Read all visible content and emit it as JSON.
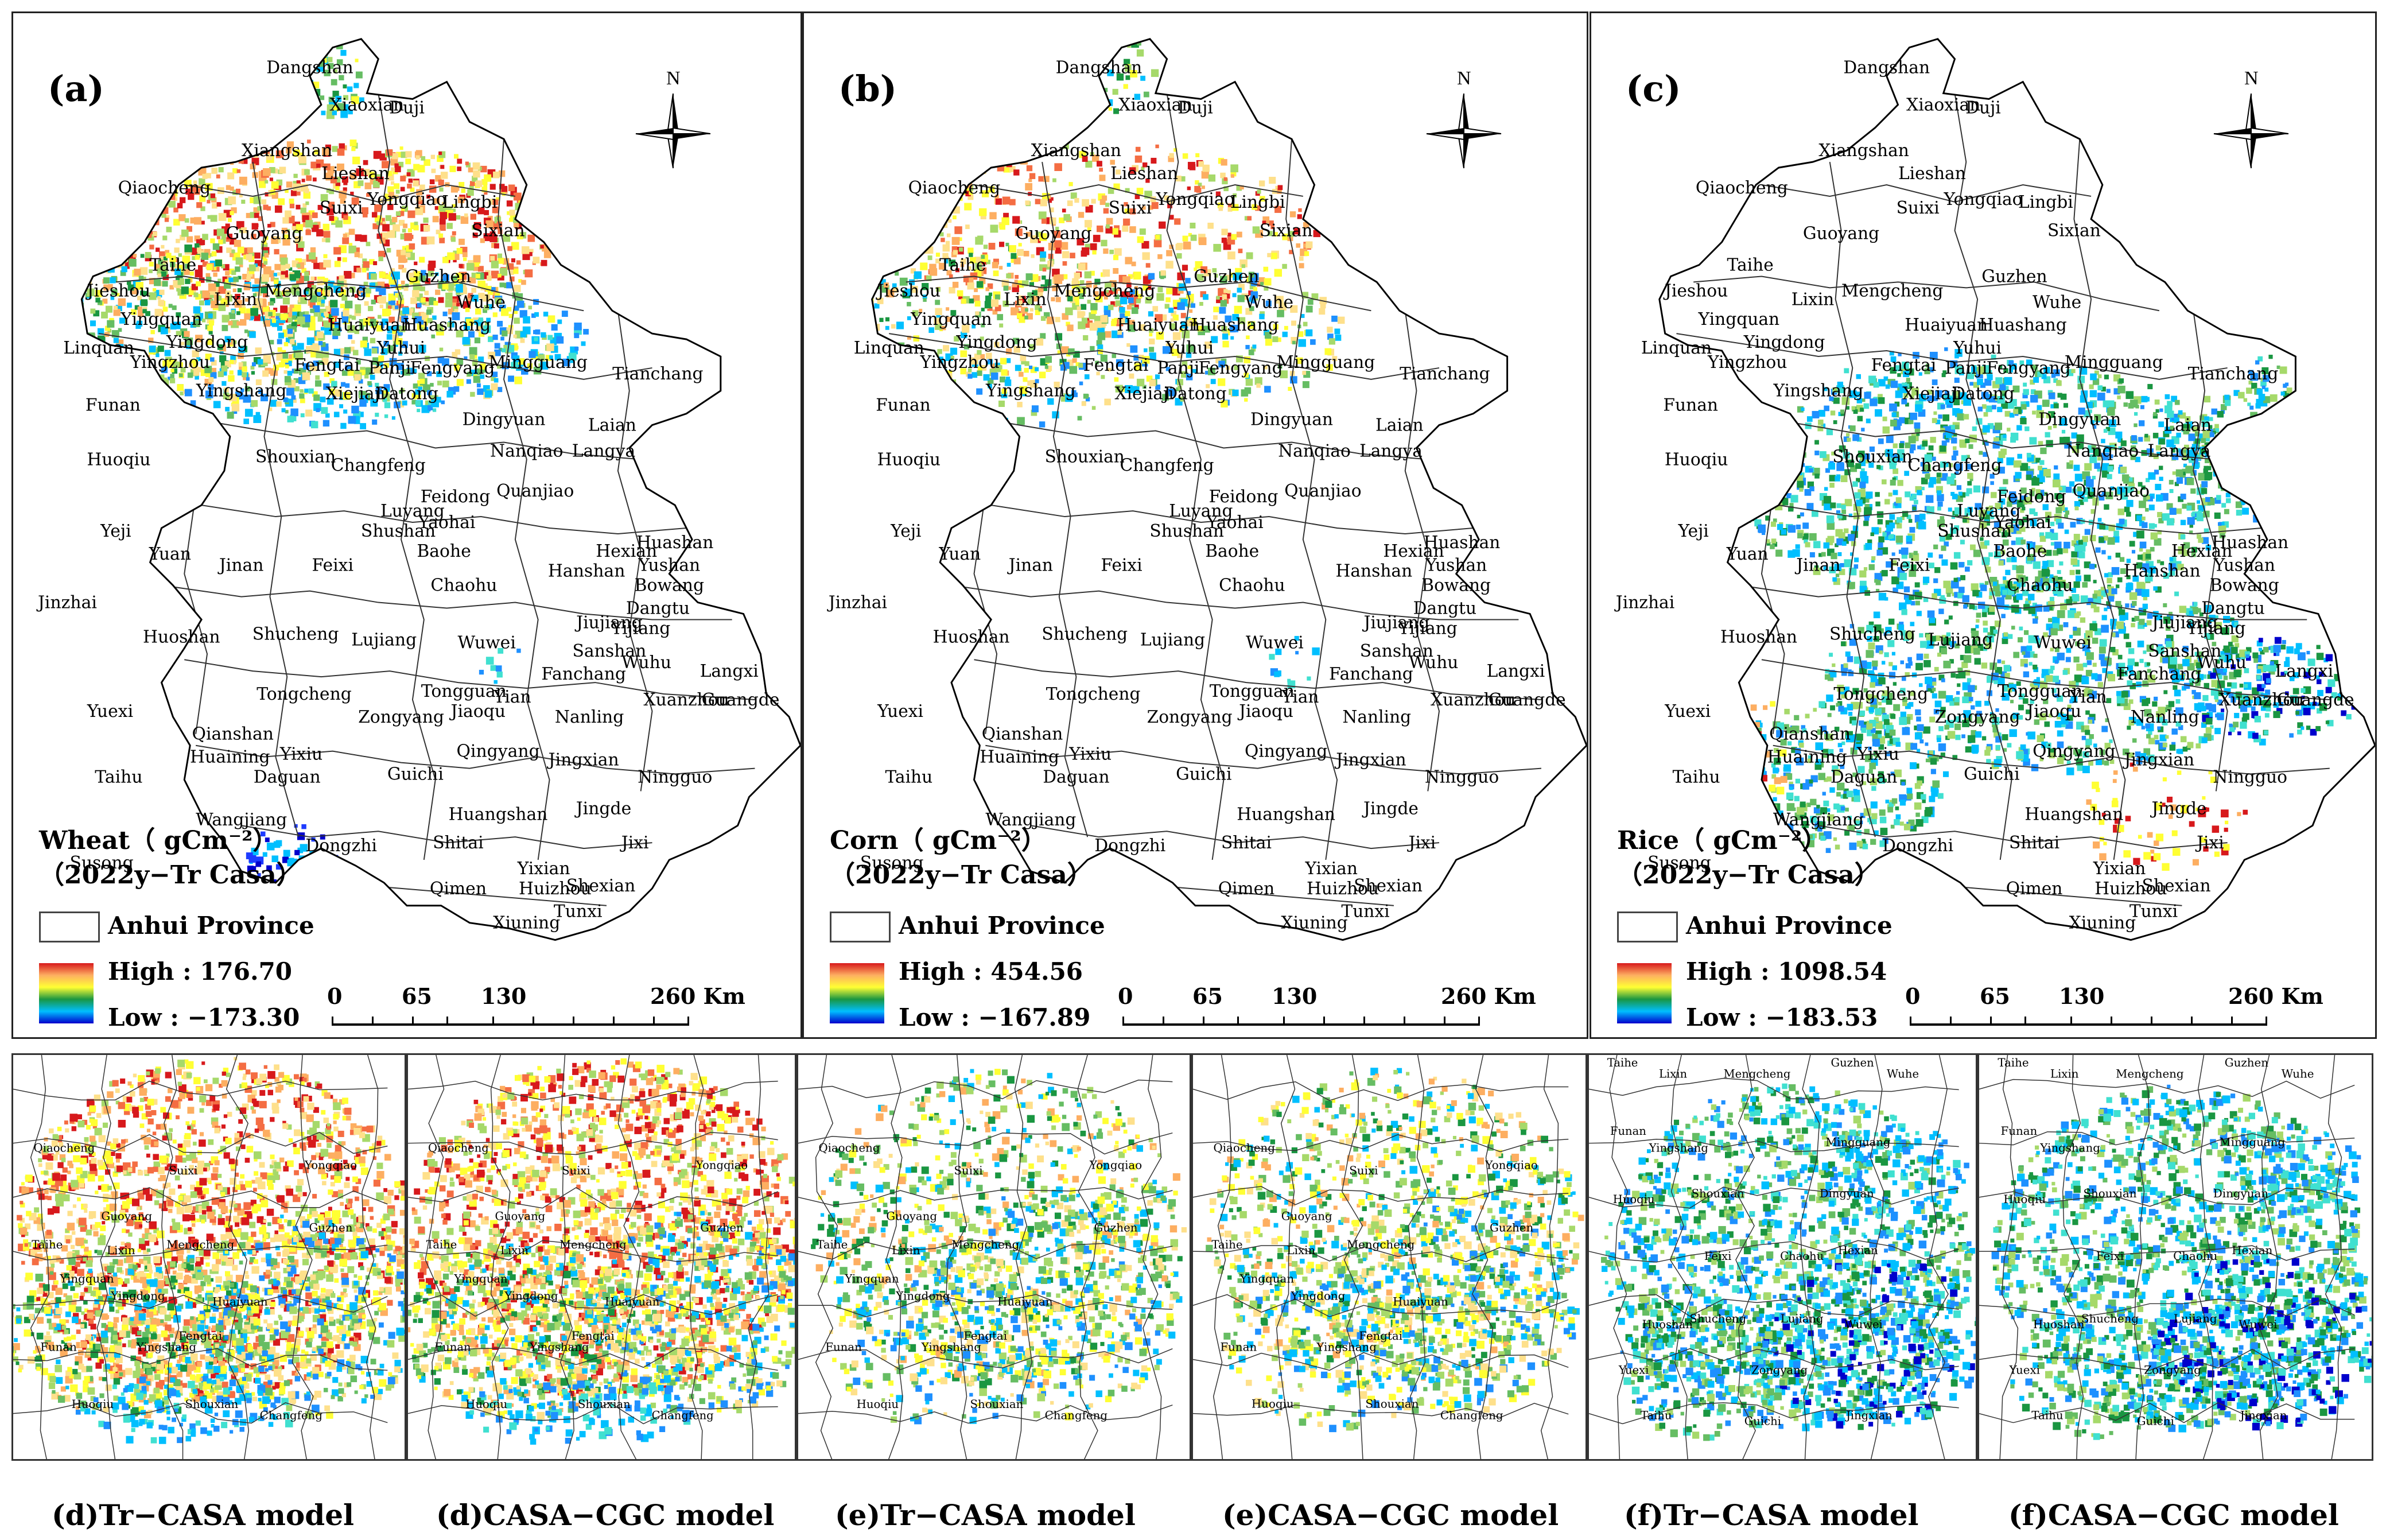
{
  "north_letter": "N",
  "panels": [
    {
      "label": "(a)",
      "legend_title_line1": "Wheat（ gCm⁻²）",
      "legend_title_line2": "（2022y−Tr Casa）",
      "province_label": "Anhui Province",
      "high": "High : 176.70",
      "low": "Low : −173.30",
      "scale_labels": [
        "0",
        "65",
        "130",
        "260 Km"
      ]
    },
    {
      "label": "(b)",
      "legend_title_line1": "Corn（ gCm⁻²）",
      "legend_title_line2": "（2022y−Tr Casa）",
      "province_label": "Anhui Province",
      "high": "High : 454.56",
      "low": "Low : −167.89",
      "scale_labels": [
        "0",
        "65",
        "130",
        "260 Km"
      ]
    },
    {
      "label": "(c)",
      "legend_title_line1": "Rice（ gCm⁻²）",
      "legend_title_line2": "（2022y−Tr Casa）",
      "province_label": "Anhui Province",
      "high": "High : 1098.54",
      "low": "Low : −183.53",
      "scale_labels": [
        "0",
        "65",
        "130",
        "260 Km"
      ]
    }
  ],
  "place_names": {
    "dangshan": "Dangshan",
    "xiaoxian": "Xiaoxian",
    "duji": "Duji",
    "xiangshan": "Xiangshan",
    "lieshan": "Lieshan",
    "yongqiao": "Yongqiao",
    "lingbi": "Lingbi",
    "qiaocheng": "Qiaocheng",
    "suixi": "Suixi",
    "guoyang": "Guoyang",
    "sixian": "Sixian",
    "taihe": "Taihe",
    "guzhen": "Guzhen",
    "jieshou": "Jieshou",
    "lixin": "Lixin",
    "mengcheng": "Mengcheng",
    "wuhe": "Wuhe",
    "yingquan": "Yingquan",
    "huaiyuan": "Huaiyuan",
    "huashang": "Huashang",
    "linquan": "Linquan",
    "yingdong": "Yingdong",
    "yuhui": "Yuhui",
    "yingzhou": "Yingzhou",
    "fengtai": "Fengtai",
    "panji": "Panji",
    "fengyang": "Fengyang",
    "mingguang": "Mingguang",
    "tianchang": "Tianchang",
    "funan": "Funan",
    "yingshang": "Yingshang",
    "xiejiaji": "Xiejiaji",
    "datong": "Datong",
    "dingyuan": "Dingyuan",
    "laian": "Laian",
    "huoqiu": "Huoqiu",
    "shouxian": "Shouxian",
    "changfeng": "Changfeng",
    "nanqiao": "Nanqiao",
    "langya": "Langya",
    "quanjiao": "Quanjiao",
    "feidong": "Feidong",
    "yeji": "Yeji",
    "luyang": "Luyang",
    "shushan": "Shushan",
    "yaohai": "Yaohai",
    "yuan": "Yuan",
    "baohe": "Baohe",
    "huashan": "Huashan",
    "hexian": "Hexian",
    "jinan": "Jinan",
    "feixi": "Feixi",
    "yushan": "Yushan",
    "bowang": "Bowang",
    "jinzhai": "Jinzhai",
    "chaohu": "Chaohu",
    "hanshan": "Hanshan",
    "dangtu": "Dangtu",
    "jiujiang": "Jiujiang",
    "yijiang": "Yijiang",
    "huoshan": "Huoshan",
    "shucheng": "Shucheng",
    "lujiang": "Lujiang",
    "wuwei": "Wuwei",
    "sanshan": "Sanshan",
    "wuhu": "Wuhu",
    "langxi": "Langxi",
    "tongcheng": "Tongcheng",
    "tongguan": "Tongguan",
    "fanchang": "Fanchang",
    "yuexi": "Yuexi",
    "zongyang": "Zongyang",
    "jiaoqu": "Jiaoqu",
    "yian": "Yian",
    "nanling": "Nanling",
    "xuanzhou": "Xuanzhou",
    "guangde": "Guangde",
    "qianshan": "Qianshan",
    "huaining": "Huaining",
    "yixiu": "Yixiu",
    "qingyang": "Qingyang",
    "jingxian": "Jingxian",
    "taihu": "Taihu",
    "daguan": "Daguan",
    "guichi": "Guichi",
    "ningguo": "Ningguo",
    "wangjiang": "Wangjiang",
    "huangshan": "Huangshan",
    "jingde": "Jingde",
    "dongzhi": "Dongzhi",
    "shitai": "Shitai",
    "jixi": "Jixi",
    "susong": "Susong",
    "yixian": "Yixian",
    "huizhou": "Huizhou",
    "shexian": "Shexian",
    "qimen": "Qimen",
    "tunxi": "Tunxi",
    "xiuning": "Xiuning"
  },
  "sub_panels": [
    {
      "caption": "(d)Tr−CASA model"
    },
    {
      "caption": "(d)CASA−CGC model"
    },
    {
      "caption": "(e)Tr−CASA model"
    },
    {
      "caption": "(e)CASA−CGC model"
    },
    {
      "caption": "(f)Tr−CASA model"
    },
    {
      "caption": "(f)CASA−CGC model"
    }
  ],
  "colors": {
    "high": "#d7191c",
    "orange": "#fdae61",
    "yellow": "#ffff33",
    "green": "#1a9641",
    "cyan": "#00bfff",
    "blue": "#0000cc"
  }
}
